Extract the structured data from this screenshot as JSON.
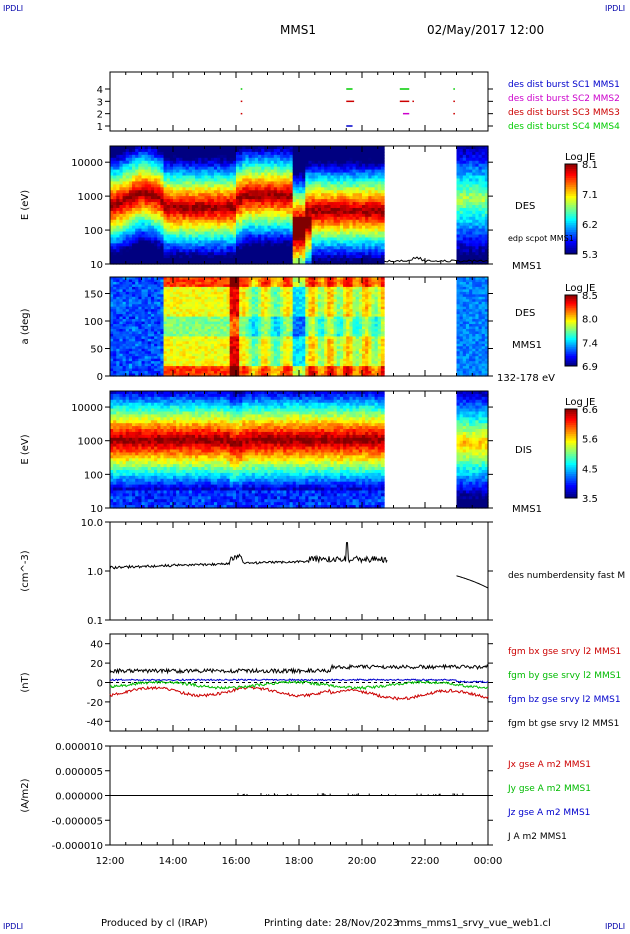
{
  "corners": {
    "top_left": "IPDLI",
    "top_right": "IPDLI",
    "bottom_left": "IPDLI",
    "bottom_right": "IPDLI"
  },
  "header": {
    "spacecraft": "MMS1",
    "date": "02/May/2017 12:00"
  },
  "footer": {
    "produced": "Produced by cl (IRAP)",
    "printing": "Printing date: 28/Nov/2023",
    "file": "mms_mms1_srvy_vue_web1.cl"
  },
  "chart_data": [
    {
      "type": "scatter",
      "panel": "burst",
      "x_range": [
        "12:00",
        "00:00"
      ],
      "y_ticks": [
        "1",
        "2",
        "3",
        "4"
      ],
      "legend": [
        {
          "name": "des dist burst SC1 MMS1",
          "color": "#0000cc"
        },
        {
          "name": "des dist burst SC2 MMS2",
          "color": "#cc00cc"
        },
        {
          "name": "des dist burst SC3 MMS3",
          "color": "#cc0000"
        },
        {
          "name": "des dist burst SC4 MMS4",
          "color": "#00cc00"
        }
      ],
      "segments": [
        {
          "y": 4,
          "x0": 16.15,
          "x1": 16.2,
          "color": "#00cc00"
        },
        {
          "y": 4,
          "x0": 19.5,
          "x1": 19.7,
          "color": "#00cc00"
        },
        {
          "y": 4,
          "x0": 21.2,
          "x1": 21.5,
          "color": "#00cc00"
        },
        {
          "y": 4,
          "x0": 22.9,
          "x1": 22.95,
          "color": "#00cc00"
        },
        {
          "y": 3,
          "x0": 16.15,
          "x1": 16.2,
          "color": "#cc0000"
        },
        {
          "y": 3,
          "x0": 19.5,
          "x1": 19.75,
          "color": "#cc0000"
        },
        {
          "y": 3,
          "x0": 21.2,
          "x1": 21.5,
          "color": "#cc0000"
        },
        {
          "y": 3,
          "x0": 21.6,
          "x1": 21.65,
          "color": "#cc0000"
        },
        {
          "y": 3,
          "x0": 22.9,
          "x1": 22.95,
          "color": "#cc0000"
        },
        {
          "y": 2,
          "x0": 16.15,
          "x1": 16.2,
          "color": "#cc0000"
        },
        {
          "y": 2,
          "x0": 21.3,
          "x1": 21.5,
          "color": "#cc00cc"
        },
        {
          "y": 2,
          "x0": 22.9,
          "x1": 22.95,
          "color": "#cc0000"
        },
        {
          "y": 1,
          "x0": 19.5,
          "x1": 19.7,
          "color": "#0000cc"
        }
      ]
    },
    {
      "type": "heatmap",
      "panel": "des_energy",
      "ylabel": "E (eV)",
      "y_ticks": [
        "10",
        "100",
        "1000",
        "10000"
      ],
      "ylim": [
        10,
        30000
      ],
      "yscale": "log",
      "right_labels": [
        "DES",
        "edp scpot MMS1",
        "MMS1"
      ],
      "colorbar": {
        "title": "Log JE",
        "ticks": [
          "8.1",
          "7.1",
          "6.2",
          "5.3"
        ]
      },
      "gap": [
        20.7,
        23.0
      ]
    },
    {
      "type": "heatmap",
      "panel": "des_pitch",
      "ylabel": "a (deg)",
      "y_ticks": [
        "0",
        "50",
        "100",
        "150"
      ],
      "ylim": [
        0,
        180
      ],
      "right_labels": [
        "DES",
        "MMS1",
        "132-178 eV"
      ],
      "colorbar": {
        "title": "Log JE",
        "ticks": [
          "8.5",
          "8.0",
          "7.4",
          "6.9"
        ]
      },
      "gap": [
        20.7,
        23.0
      ]
    },
    {
      "type": "heatmap",
      "panel": "dis_energy",
      "ylabel": "E (eV)",
      "y_ticks": [
        "10",
        "100",
        "1000",
        "10000"
      ],
      "ylim": [
        10,
        30000
      ],
      "yscale": "log",
      "right_labels": [
        "DIS",
        "MMS1"
      ],
      "colorbar": {
        "title": "Log JE",
        "ticks": [
          "6.6",
          "5.6",
          "4.5",
          "3.5"
        ]
      },
      "gap": [
        20.7,
        23.0
      ]
    },
    {
      "type": "line",
      "panel": "density",
      "ylabel": "(cm^-3)",
      "y_ticks": [
        "0.1",
        "1.0",
        "10.0"
      ],
      "ylim": [
        0.1,
        10
      ],
      "yscale": "log",
      "legend": [
        {
          "name": "des numberdensity fast M",
          "color": "#000000"
        }
      ],
      "gap": [
        20.7,
        23.0
      ]
    },
    {
      "type": "line",
      "panel": "fgm",
      "ylabel": "(nT)",
      "y_ticks": [
        "-40",
        "-20",
        "0",
        "20",
        "40"
      ],
      "ylim": [
        -50,
        50
      ],
      "legend": [
        {
          "name": "fgm bx gse srvy l2 MMS1",
          "color": "#cc0000"
        },
        {
          "name": "fgm by gse srvy l2 MMS1",
          "color": "#00bb00"
        },
        {
          "name": "fgm bz gse srvy l2 MMS1",
          "color": "#0000cc"
        },
        {
          "name": "fgm bt gse srvy l2 MMS1",
          "color": "#000000"
        }
      ]
    },
    {
      "type": "line",
      "panel": "current",
      "ylabel": "(A/m2)",
      "y_ticks": [
        "-0.000010",
        "-0.000005",
        "0.000000",
        "0.000005",
        "0.000010"
      ],
      "ylim": [
        -1e-05,
        1e-05
      ],
      "legend": [
        {
          "name": "Jx gse A m2 MMS1",
          "color": "#cc0000"
        },
        {
          "name": "Jy gse A m2 MMS1",
          "color": "#00bb00"
        },
        {
          "name": "Jz gse A m2 MMS1",
          "color": "#0000cc"
        },
        {
          "name": "J A m2 MMS1",
          "color": "#000000"
        }
      ],
      "x_ticks": [
        "12:00",
        "14:00",
        "16:00",
        "18:00",
        "20:00",
        "22:00",
        "00:00"
      ]
    }
  ]
}
